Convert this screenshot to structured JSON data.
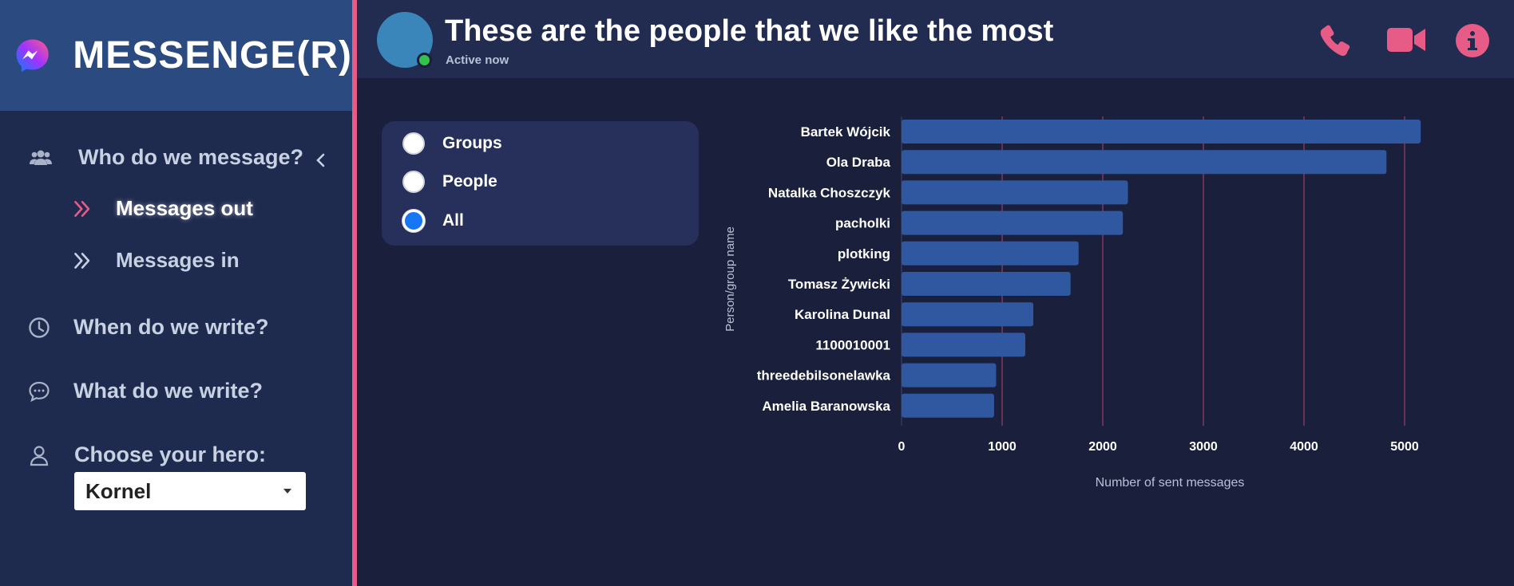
{
  "brand": {
    "title": "MESSENGE(R)",
    "logo": "messenger-logo"
  },
  "sidebar": {
    "sections": [
      {
        "label": "Who do we message?",
        "icon": "users-icon",
        "expanded": true
      },
      {
        "label": "When do we write?",
        "icon": "clock-icon"
      },
      {
        "label": "What do we write?",
        "icon": "chat-bubble-icon"
      },
      {
        "label": "Choose your hero:",
        "icon": "person-icon"
      }
    ],
    "subitems": [
      {
        "label": "Messages out",
        "icon": "double-chevron-right-icon",
        "active": true
      },
      {
        "label": "Messages in",
        "icon": "double-chevron-right-icon",
        "active": false
      }
    ],
    "hero_select": {
      "value": "Kornel"
    }
  },
  "header": {
    "title": "These are the people that we like the most",
    "status": "Active now",
    "icons": [
      "phone-icon",
      "video-icon",
      "info-icon"
    ]
  },
  "filter": {
    "options": [
      {
        "label": "Groups",
        "checked": false
      },
      {
        "label": "People",
        "checked": false
      },
      {
        "label": "All",
        "checked": true
      }
    ]
  },
  "colors": {
    "accent": "#e65c87",
    "bar": "#3058a0",
    "sidebar": "#1f2a4f",
    "brand": "#2a4a80"
  },
  "chart_data": {
    "type": "bar",
    "orientation": "horizontal",
    "categories": [
      "Bartek Wójcik",
      "Ola Draba",
      "Natalka Choszczyk",
      "pacholki",
      "plotking",
      "Tomasz Żywicki",
      "Karolina Dunal",
      "1100010001",
      "threedebilsonelawka",
      "Amelia Baranowska"
    ],
    "values": [
      5160,
      4820,
      2250,
      2200,
      1760,
      1680,
      1310,
      1230,
      940,
      920
    ],
    "xlabel": "Number of sent messages",
    "ylabel": "Person/group name",
    "xlim": [
      0,
      5300
    ],
    "xticks": [
      "0",
      "1000",
      "2000",
      "3000",
      "4000",
      "5000"
    ],
    "grid": "vertical"
  }
}
